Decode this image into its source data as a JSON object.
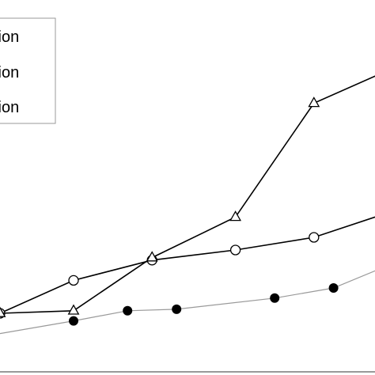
{
  "chart_data": {
    "type": "line",
    "title": "",
    "xlabel": "",
    "ylabel": "",
    "legend_placement": "top-left",
    "grid": false,
    "series": [
      {
        "name": "tion",
        "marker": "open-circle",
        "line_color": "#000000",
        "x": [
          0,
          1.5,
          3.1,
          4.8,
          6.4,
          7.8
        ],
        "y": [
          1.0,
          1.65,
          2.05,
          2.25,
          2.5,
          2.95
        ]
      },
      {
        "name": "tion",
        "marker": "open-triangle",
        "line_color": "#000000",
        "x": [
          0,
          1.5,
          3.1,
          4.8,
          6.4,
          7.8
        ],
        "y": [
          1.0,
          1.05,
          2.1,
          2.9,
          5.15,
          5.75
        ]
      },
      {
        "name": "tion",
        "marker": "filled-circle",
        "line_color": "#999999",
        "x": [
          0,
          1.5,
          2.6,
          3.6,
          5.6,
          6.8,
          7.8
        ],
        "y": [
          0.6,
          0.85,
          1.05,
          1.08,
          1.3,
          1.5,
          1.9
        ]
      }
    ]
  },
  "legend": {
    "entries": [
      {
        "label": "tion"
      },
      {
        "label": "tion"
      },
      {
        "label": "tion"
      }
    ]
  },
  "colors": {
    "axis": "#999999",
    "series_line": "#000000",
    "series_grey": "#999999"
  }
}
